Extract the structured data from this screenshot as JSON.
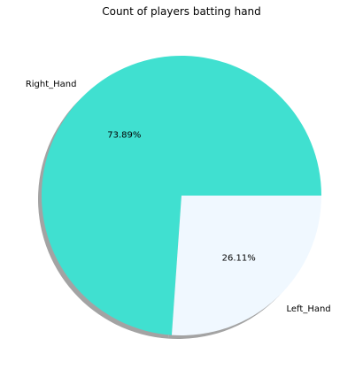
{
  "chart_data": {
    "type": "pie",
    "title": "Count of players batting hand",
    "slices": [
      {
        "label": "Right_Hand",
        "percent": 73.89,
        "percent_label": "73.89%",
        "color": "#40e0d0"
      },
      {
        "label": "Left_Hand",
        "percent": 26.11,
        "percent_label": "26.11%",
        "color": "#f0f8ff"
      }
    ],
    "shadow": true,
    "start_angle_deg": 0,
    "direction": "counterclockwise"
  }
}
